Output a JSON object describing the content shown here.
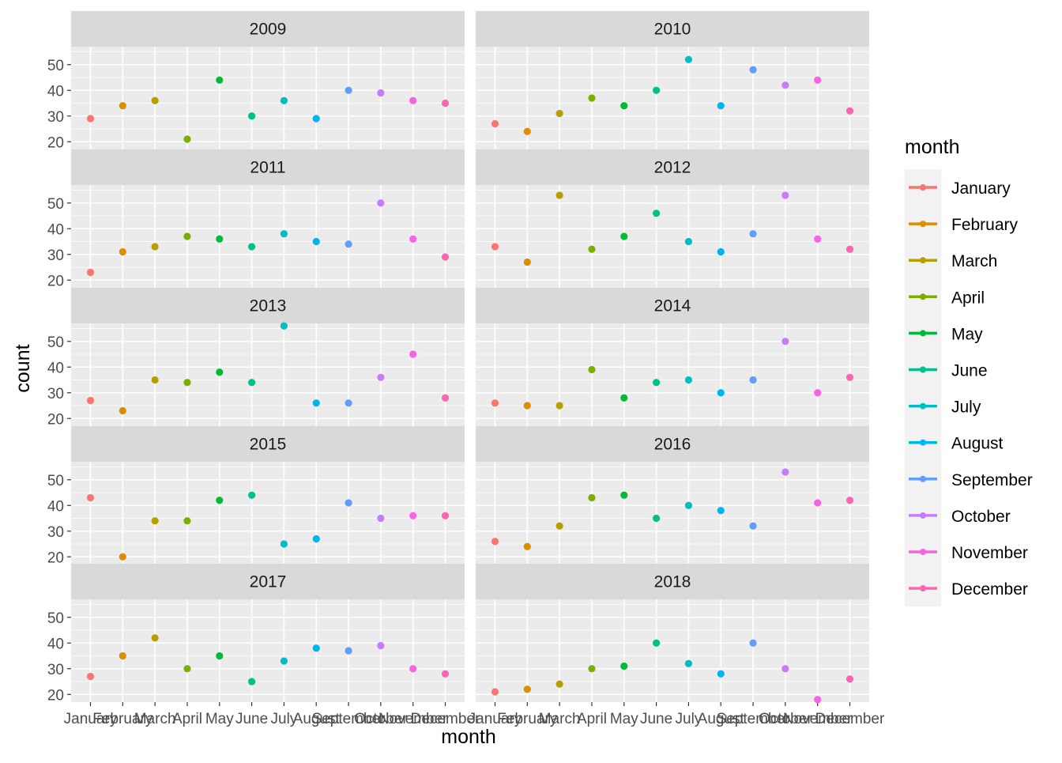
{
  "chart_data": {
    "type": "scatter",
    "facet_by": "year",
    "xlabel": "month",
    "ylabel": "count",
    "y_ticks": [
      20,
      30,
      40,
      50
    ],
    "ylim": [
      17,
      57
    ],
    "categories": [
      "January",
      "February",
      "March",
      "April",
      "May",
      "June",
      "July",
      "August",
      "September",
      "October",
      "November",
      "December"
    ],
    "legend": {
      "title": "month",
      "position": "right",
      "colors": [
        "#F8766D",
        "#DE8C00",
        "#B79F00",
        "#7CAE00",
        "#00BA38",
        "#00C08B",
        "#00BFC4",
        "#00B4F0",
        "#619CFF",
        "#C77CFF",
        "#F564E3",
        "#FF64B0"
      ]
    },
    "panels": [
      {
        "year": "2009",
        "values": [
          29,
          34,
          36,
          21,
          44,
          30,
          36,
          29,
          40,
          39,
          36,
          35
        ]
      },
      {
        "year": "2010",
        "values": [
          27,
          24,
          31,
          37,
          34,
          40,
          52,
          34,
          48,
          42,
          44,
          32
        ]
      },
      {
        "year": "2011",
        "values": [
          23,
          31,
          33,
          37,
          36,
          33,
          38,
          35,
          34,
          50,
          36,
          29
        ]
      },
      {
        "year": "2012",
        "values": [
          33,
          27,
          53,
          32,
          37,
          46,
          35,
          31,
          38,
          53,
          36,
          32
        ]
      },
      {
        "year": "2013",
        "values": [
          27,
          23,
          35,
          34,
          38,
          34,
          56,
          26,
          26,
          36,
          45,
          28
        ]
      },
      {
        "year": "2014",
        "values": [
          26,
          25,
          25,
          39,
          28,
          34,
          35,
          30,
          35,
          50,
          30,
          36
        ]
      },
      {
        "year": "2015",
        "values": [
          43,
          20,
          34,
          34,
          42,
          44,
          25,
          27,
          41,
          35,
          36,
          36
        ]
      },
      {
        "year": "2016",
        "values": [
          26,
          24,
          32,
          43,
          44,
          35,
          40,
          38,
          32,
          53,
          41,
          42
        ]
      },
      {
        "year": "2017",
        "values": [
          27,
          35,
          42,
          30,
          35,
          25,
          33,
          38,
          37,
          39,
          30,
          28
        ]
      },
      {
        "year": "2018",
        "values": [
          21,
          22,
          24,
          30,
          31,
          40,
          32,
          28,
          40,
          30,
          18,
          26
        ]
      }
    ]
  }
}
